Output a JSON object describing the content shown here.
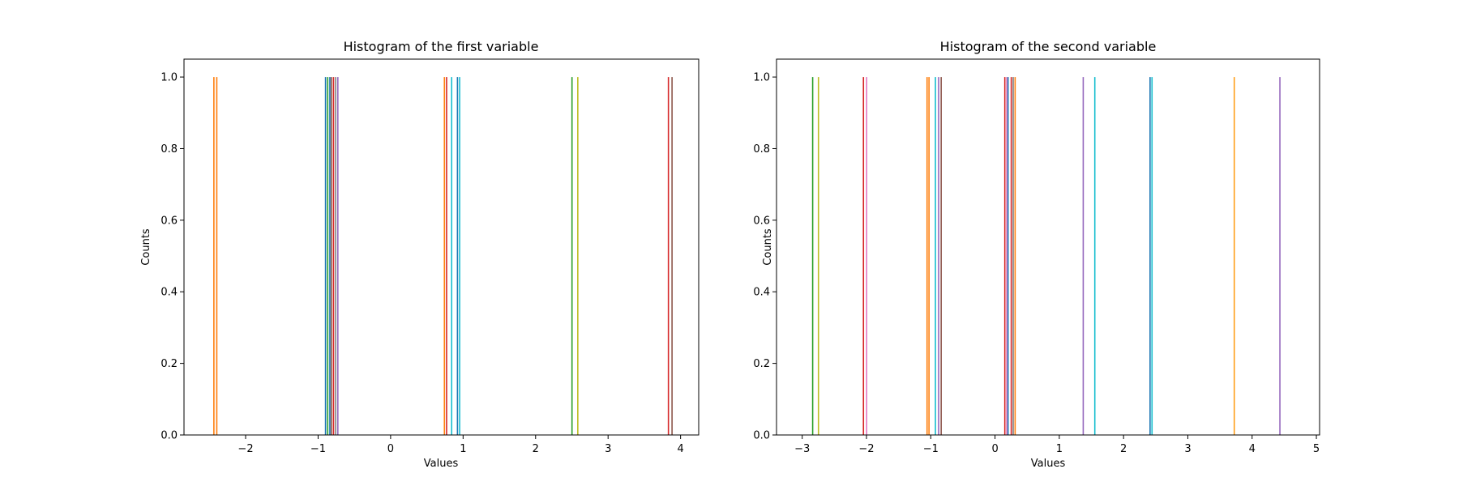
{
  "chart_data": [
    {
      "type": "histogram",
      "title": "Histogram of the first variable",
      "xlabel": "Values",
      "ylabel": "Counts",
      "xlim": [
        -2.85,
        4.25
      ],
      "ylim": [
        0,
        1.05
      ],
      "xticks": [
        -2,
        -1,
        0,
        1,
        2,
        3,
        4
      ],
      "xtick_labels": [
        "−2",
        "−1",
        "0",
        "1",
        "2",
        "3",
        "4"
      ],
      "yticks": [
        0,
        0.2,
        0.4,
        0.6,
        0.8,
        1.0
      ],
      "ytick_labels": [
        "0.0",
        "0.2",
        "0.4",
        "0.6",
        "0.8",
        "1.0"
      ],
      "bars": [
        {
          "x": -2.44,
          "value": 1,
          "color": "#ff7f0e"
        },
        {
          "x": -2.4,
          "value": 1,
          "color": "#ff7f0e"
        },
        {
          "x": -0.9,
          "value": 1,
          "color": "#1f77b4"
        },
        {
          "x": -0.87,
          "value": 1,
          "color": "#2ca02c"
        },
        {
          "x": -0.84,
          "value": 1,
          "color": "#1f77b4"
        },
        {
          "x": -0.82,
          "value": 1,
          "color": "#8c564b"
        },
        {
          "x": -0.79,
          "value": 1,
          "color": "#d62728"
        },
        {
          "x": -0.76,
          "value": 1,
          "color": "#7f7f7f"
        },
        {
          "x": -0.73,
          "value": 1,
          "color": "#9467bd"
        },
        {
          "x": 0.74,
          "value": 1,
          "color": "#ff7f0e"
        },
        {
          "x": 0.77,
          "value": 1,
          "color": "#d62728"
        },
        {
          "x": 0.84,
          "value": 1,
          "color": "#17becf"
        },
        {
          "x": 0.92,
          "value": 1,
          "color": "#1f77b4"
        },
        {
          "x": 0.95,
          "value": 1,
          "color": "#17becf"
        },
        {
          "x": 2.5,
          "value": 1,
          "color": "#2ca02c"
        },
        {
          "x": 2.58,
          "value": 1,
          "color": "#bcbd22"
        },
        {
          "x": 3.83,
          "value": 1,
          "color": "#d62728"
        },
        {
          "x": 3.88,
          "value": 1,
          "color": "#8c564b"
        }
      ]
    },
    {
      "type": "histogram",
      "title": "Histogram of the second variable",
      "xlabel": "Values",
      "ylabel": "Counts",
      "xlim": [
        -3.4,
        5.05
      ],
      "ylim": [
        0,
        1.05
      ],
      "xticks": [
        -3,
        -2,
        -1,
        0,
        1,
        2,
        3,
        4,
        5
      ],
      "xtick_labels": [
        "−3",
        "−2",
        "−1",
        "0",
        "1",
        "2",
        "3",
        "4",
        "5"
      ],
      "yticks": [
        0,
        0.2,
        0.4,
        0.6,
        0.8,
        1.0
      ],
      "ytick_labels": [
        "0.0",
        "0.2",
        "0.4",
        "0.6",
        "0.8",
        "1.0"
      ],
      "bars": [
        {
          "x": -2.84,
          "value": 1,
          "color": "#2ca02c"
        },
        {
          "x": -2.75,
          "value": 1,
          "color": "#bcbd22"
        },
        {
          "x": -2.05,
          "value": 1,
          "color": "#d62728"
        },
        {
          "x": -2.0,
          "value": 1,
          "color": "#e377c2"
        },
        {
          "x": -1.06,
          "value": 1,
          "color": "#ff7f0e"
        },
        {
          "x": -1.03,
          "value": 1,
          "color": "#ff7f0e"
        },
        {
          "x": -0.93,
          "value": 1,
          "color": "#17becf"
        },
        {
          "x": -0.88,
          "value": 1,
          "color": "#9467bd"
        },
        {
          "x": -0.84,
          "value": 1,
          "color": "#8c564b"
        },
        {
          "x": 0.15,
          "value": 1,
          "color": "#d62728"
        },
        {
          "x": 0.18,
          "value": 1,
          "color": "#e377c2"
        },
        {
          "x": 0.2,
          "value": 1,
          "color": "#1f77b4"
        },
        {
          "x": 0.25,
          "value": 1,
          "color": "#d62728"
        },
        {
          "x": 0.28,
          "value": 1,
          "color": "#7f7f7f"
        },
        {
          "x": 0.31,
          "value": 1,
          "color": "#ff7f0e"
        },
        {
          "x": 1.37,
          "value": 1,
          "color": "#9467bd"
        },
        {
          "x": 1.55,
          "value": 1,
          "color": "#17becf"
        },
        {
          "x": 2.41,
          "value": 1,
          "color": "#1f77b4"
        },
        {
          "x": 2.44,
          "value": 1,
          "color": "#17becf"
        },
        {
          "x": 3.72,
          "value": 1,
          "color": "#ff9f1c"
        },
        {
          "x": 4.43,
          "value": 1,
          "color": "#9467bd"
        }
      ]
    }
  ]
}
